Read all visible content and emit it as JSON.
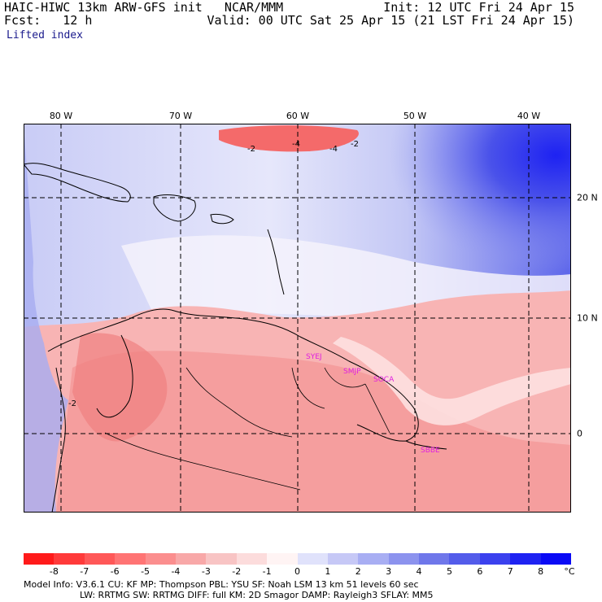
{
  "header": {
    "model_title": "HAIC-HIWC 13km ARW-GFS init   NCAR/MMM",
    "forecast": "Fcst:   12 h",
    "init": "Init: 12 UTC Fri 24 Apr 15",
    "valid": "Valid: 00 UTC Sat 25 Apr 15 (21 LST Fri 24 Apr 15)",
    "field": "Lifted index"
  },
  "map": {
    "lon_labels": [
      "80 W",
      "70 W",
      "60 W",
      "50 W",
      "40 W"
    ],
    "lat_labels": [
      "20 N",
      "10 N",
      "0"
    ],
    "station_labels": [
      "SYEJ",
      "SMJP",
      "SOCA",
      "SBBE"
    ],
    "contour_labels": [
      "-2",
      "-4",
      "-4",
      "-2",
      "-2"
    ],
    "station_color": "#e020e0"
  },
  "legend": {
    "colors": [
      "#ff1a1a",
      "#ff3a3a",
      "#ff5858",
      "#ff7474",
      "#fb8e8e",
      "#f8a8a8",
      "#f8c4c4",
      "#fcdcdc",
      "#fff4f4",
      "#e0e2fb",
      "#c6c8f6",
      "#a8aef3",
      "#8c93ee",
      "#6f77ea",
      "#535cea",
      "#3b41ee",
      "#1e22f2",
      "#0a0af5"
    ],
    "ticks": [
      "-8",
      "-7",
      "-6",
      "-5",
      "-4",
      "-3",
      "-2",
      "-1",
      "0",
      "1",
      "2",
      "3",
      "4",
      "5",
      "6",
      "7",
      "8"
    ],
    "unit": "°C"
  },
  "model_info": {
    "line1": "Model Info: V3.6.1    CU: KF      MP: Thompson     PBL: YSU      SF: Noah LSM     13 km    51 levels   60 sec",
    "line2": "LW: RRTMG    SW: RRTMG   DIFF: full    KM: 2D Smagor  DAMP: Rayleigh3   SFLAY: MM5"
  }
}
